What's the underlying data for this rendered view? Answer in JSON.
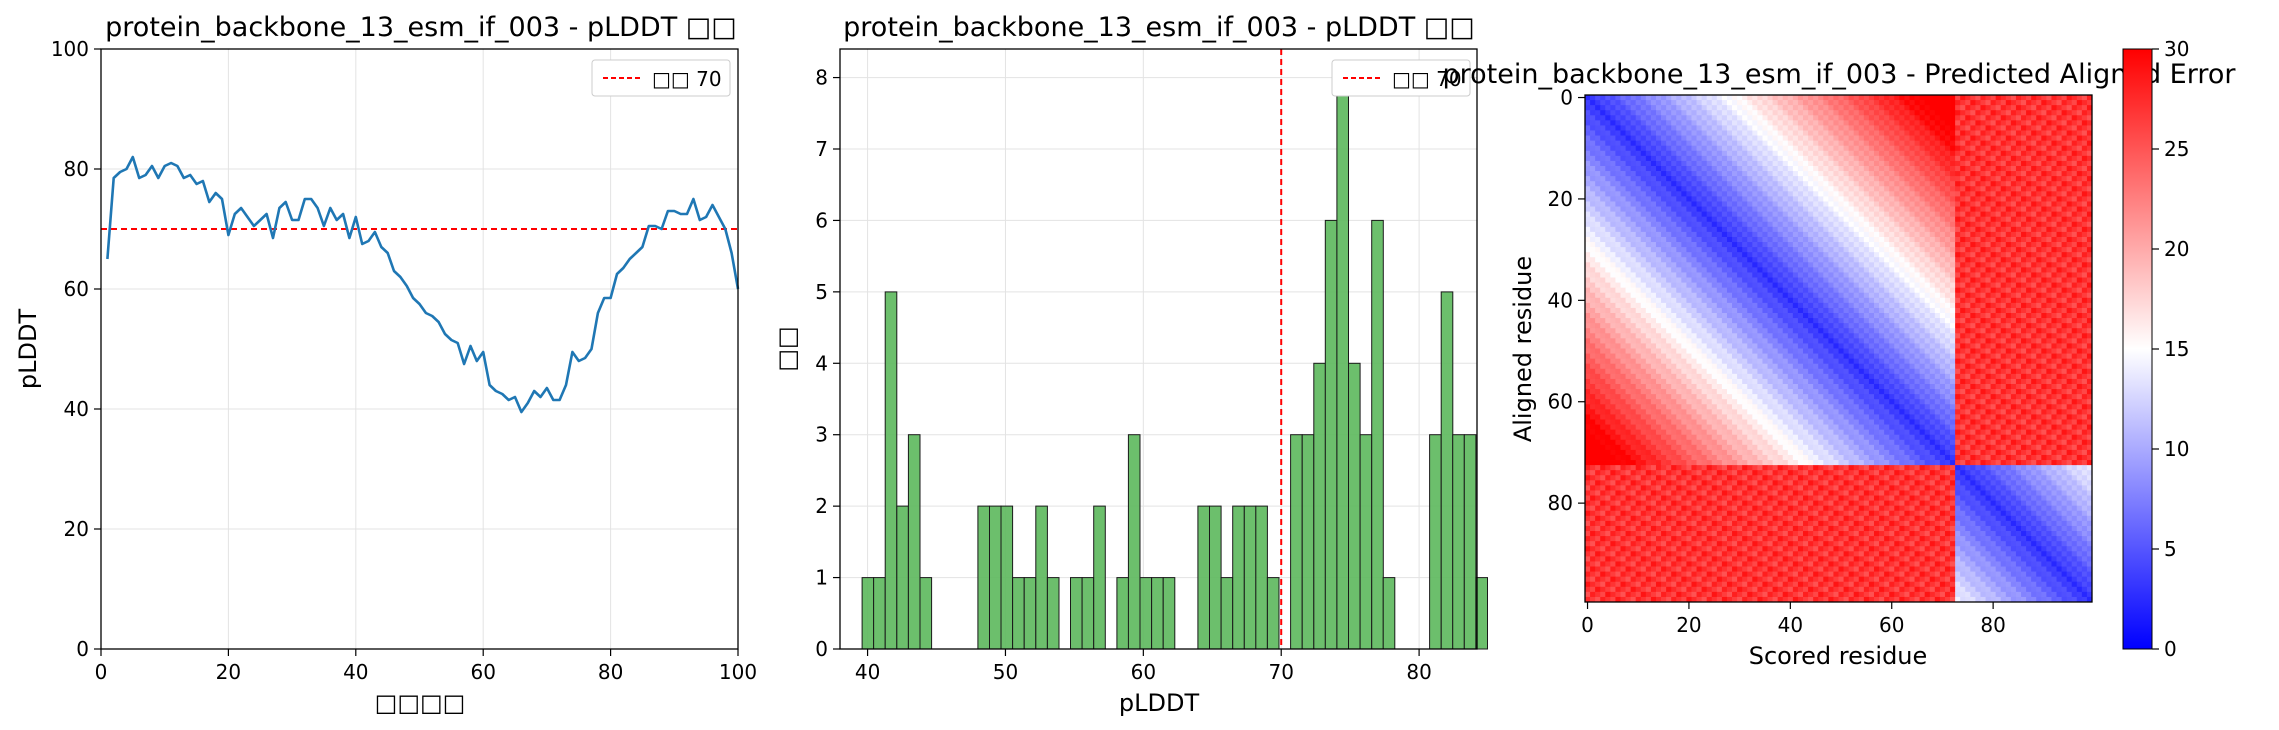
{
  "chart_data": [
    {
      "type": "line",
      "title": "protein_backbone_13_esm_if_003 - pLDDT □□",
      "xlabel": "□□□□",
      "ylabel": "pLDDT",
      "xlim": [
        0,
        100
      ],
      "ylim": [
        0,
        100
      ],
      "xticks": [
        0,
        20,
        40,
        60,
        80,
        100
      ],
      "yticks": [
        0,
        20,
        40,
        60,
        80,
        100
      ],
      "grid": true,
      "legend": {
        "position": "top-right",
        "entries": [
          {
            "label": "□□ 70",
            "style": "dashed",
            "color": "#ff0000"
          }
        ]
      },
      "threshold": 70,
      "series": [
        {
          "color": "#1f77b4",
          "x": [
            1,
            2,
            3,
            4,
            5,
            6,
            7,
            8,
            9,
            10,
            11,
            12,
            13,
            14,
            15,
            16,
            17,
            18,
            19,
            20,
            21,
            22,
            23,
            24,
            25,
            26,
            27,
            28,
            29,
            30,
            31,
            32,
            33,
            34,
            35,
            36,
            37,
            38,
            39,
            40,
            41,
            42,
            43,
            44,
            45,
            46,
            47,
            48,
            49,
            50,
            51,
            52,
            53,
            54,
            55,
            56,
            57,
            58,
            59,
            60,
            61,
            62,
            63,
            64,
            65,
            66,
            67,
            68,
            69,
            70,
            71,
            72,
            73,
            74,
            75,
            76,
            77,
            78,
            79,
            80,
            81,
            82,
            83,
            84,
            85,
            86,
            87,
            88,
            89,
            90,
            91,
            92,
            93,
            94,
            95,
            96,
            97,
            98,
            99,
            100
          ],
          "values": [
            65,
            78.5,
            79.5,
            80,
            82,
            78.5,
            79,
            80.5,
            78.5,
            80.5,
            81,
            80.5,
            78.5,
            79,
            77.5,
            78,
            74.5,
            76,
            75,
            69,
            72.5,
            73.5,
            72,
            70.5,
            71.5,
            72.5,
            68.5,
            73.5,
            74.5,
            71.5,
            71.5,
            75,
            75,
            73.5,
            70.5,
            73.5,
            71.5,
            72.5,
            68.5,
            72,
            67.5,
            68,
            69.5,
            67,
            66,
            63,
            62,
            60.5,
            58.5,
            57.5,
            56,
            55.5,
            54.5,
            52.5,
            51.5,
            51,
            47.5,
            50.5,
            48,
            49.5,
            44,
            43,
            42.5,
            41.5,
            42,
            39.5,
            41,
            43,
            42,
            43.5,
            41.5,
            41.5,
            44,
            49.5,
            48,
            48.5,
            50,
            56,
            58.5,
            58.5,
            62.5,
            63.5,
            65,
            66,
            67,
            70.5,
            70.5,
            70,
            73,
            73,
            72.5,
            72.5,
            75,
            71.5,
            72,
            74,
            72,
            70,
            66,
            60
          ]
        }
      ]
    },
    {
      "type": "bar",
      "title": "protein_backbone_13_esm_if_003 - pLDDT □□",
      "xlabel": "pLDDT",
      "ylabel": "□□",
      "xlim": [
        38,
        84.2
      ],
      "ylim": [
        0,
        8.4
      ],
      "xticks": [
        40,
        50,
        60,
        70,
        80
      ],
      "yticks": [
        0,
        1,
        2,
        3,
        4,
        5,
        6,
        7,
        8
      ],
      "grid": true,
      "legend": {
        "position": "top-right",
        "entries": [
          {
            "label": "□□ 70",
            "style": "dashed",
            "color": "#ff0000"
          }
        ]
      },
      "threshold": 70,
      "color": "#5cb85c",
      "bin_start": 39.6,
      "bin_width": 0.84,
      "values": [
        1,
        1,
        5,
        2,
        3,
        1,
        0,
        0,
        0,
        0,
        2,
        2,
        2,
        1,
        1,
        2,
        1,
        0,
        1,
        1,
        2,
        0,
        1,
        3,
        1,
        1,
        1,
        0,
        0,
        2,
        2,
        1,
        2,
        2,
        2,
        1,
        0,
        3,
        3,
        4,
        6,
        8,
        4,
        3,
        6,
        1,
        0,
        0,
        0,
        3,
        5,
        3,
        3,
        1
      ]
    },
    {
      "type": "heatmap",
      "title": "protein_backbone_13_esm_if_003 - Predicted Aligned Error",
      "xlabel": "Scored residue",
      "ylabel": "Aligned residue",
      "xticks": [
        0,
        20,
        40,
        60,
        80
      ],
      "yticks": [
        0,
        20,
        40,
        60,
        80
      ],
      "size": 100,
      "colorbar": {
        "min": 0,
        "max": 30,
        "ticks": [
          0,
          5,
          10,
          15,
          20,
          25,
          30
        ],
        "colormap": "bwr",
        "colors": [
          "#0000ff",
          "#ffffff",
          "#ff0000"
        ]
      },
      "domains": [
        {
          "range": [
            0,
            72
          ],
          "error": 3
        },
        {
          "range": [
            73,
            99
          ],
          "error": 3
        }
      ],
      "inter_domain_error": 27
    }
  ]
}
